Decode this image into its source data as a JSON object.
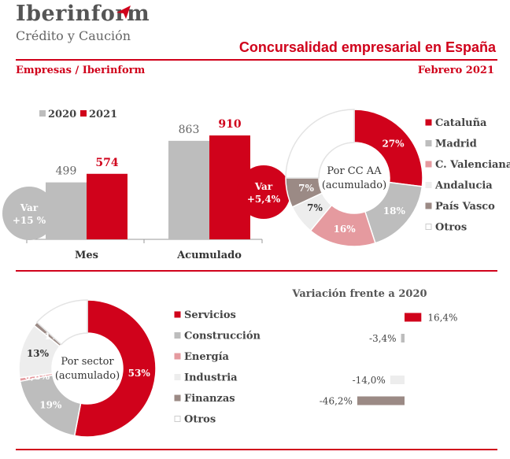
{
  "header": {
    "brand": "Iberinform",
    "brand_sub": "Crédito y Caución",
    "title": "Concursalidad empresarial en España",
    "left_label": "Empresas / Iberinform",
    "right_label": "Febrero 2021"
  },
  "colors": {
    "red": "#d0021b",
    "grey": "#bdbdbd",
    "pink": "#e59a9f",
    "light": "#ededed",
    "taupe": "#9b8a85",
    "white": "#ffffff"
  },
  "chart_data": [
    {
      "type": "bar",
      "categories": [
        "Mes",
        "Acumulado"
      ],
      "series": [
        {
          "name": "2020",
          "values": [
            499,
            863
          ]
        },
        {
          "name": "2021",
          "values": [
            574,
            910
          ]
        }
      ],
      "value_labels": [
        [
          "499",
          "863"
        ],
        [
          "574",
          "910"
        ]
      ],
      "ylim": [
        0,
        1000
      ],
      "legend": "top-left",
      "badges": [
        {
          "lines": [
            "Var",
            "+15 %"
          ],
          "color": "grey"
        },
        {
          "lines": [
            "Var",
            "+5,4%"
          ],
          "color": "red"
        }
      ]
    },
    {
      "type": "pie",
      "center_label": [
        "Por CC AA",
        "(acumulado)"
      ],
      "categories": [
        "Cataluña",
        "Madrid",
        "C. Valenciana",
        "Andalucia",
        "País Vasco",
        "Otros"
      ],
      "values": [
        27,
        18,
        16,
        7,
        7,
        25
      ],
      "slice_labels": [
        "27%",
        "18%",
        "16%",
        "7%",
        "7%",
        ""
      ],
      "colors": [
        "red",
        "grey",
        "pink",
        "light",
        "taupe",
        "white"
      ],
      "legend": "right"
    },
    {
      "type": "pie",
      "center_label": [
        "Por sector",
        "(acumulado)"
      ],
      "categories": [
        "Servicios",
        "Construcción",
        "Energía",
        "Industria",
        "Finanzas",
        "Otros"
      ],
      "values": [
        53,
        19,
        0.8,
        13,
        1,
        13.2
      ],
      "slice_labels": [
        "53%",
        "19%",
        "0,8%",
        "13%",
        "1%",
        ""
      ],
      "colors": [
        "red",
        "grey",
        "pink",
        "light",
        "taupe",
        "white"
      ],
      "legend": "right"
    },
    {
      "type": "bar",
      "orientation": "horizontal",
      "title": "Variación frente a 2020",
      "categories": [
        "Servicios",
        "Construcción",
        "Energía",
        "Industria",
        "Finanzas",
        "Otros"
      ],
      "values": [
        16.4,
        -3.4,
        null,
        -14.0,
        -46.2,
        null
      ],
      "value_labels": [
        "16,4%",
        "-3,4%",
        "",
        "-14,0%",
        "-46,2%",
        ""
      ],
      "colors": [
        "red",
        "grey",
        "pink",
        "light",
        "taupe",
        "white"
      ]
    }
  ]
}
